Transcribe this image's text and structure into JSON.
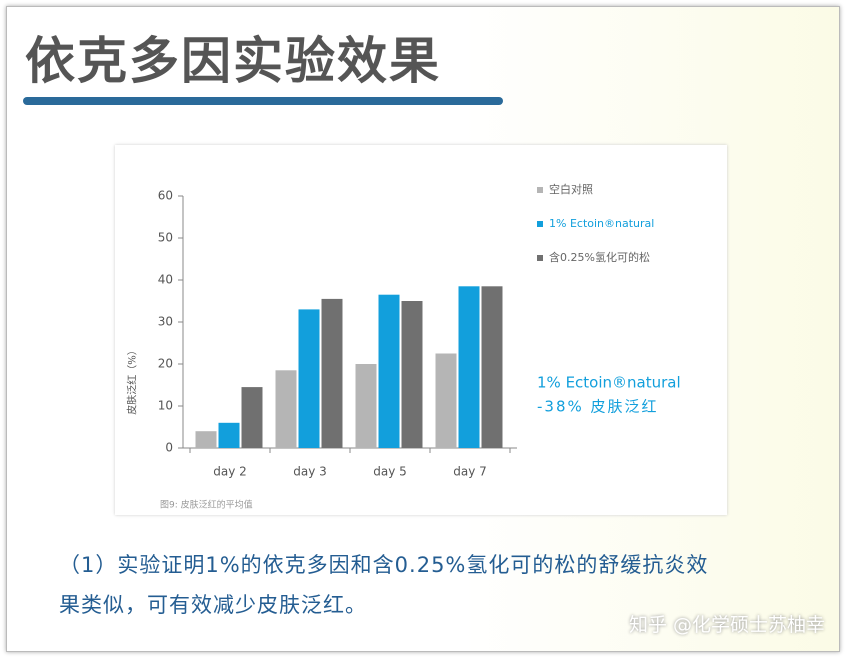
{
  "slide": {
    "title": "依克多因实验效果",
    "caption_lines": [
      "（1）实验证明1%的依克多因和含0.25%氢化可的松的舒缓抗炎效",
      "果类似，可有效减少皮肤泛红。"
    ],
    "watermark": "知乎 @化学硕士苏柚幸"
  },
  "chart_data": {
    "type": "bar",
    "y_label": "皮肤泛红（%）",
    "figure_caption": "图9: 皮肤泛红的平均值",
    "annotations": [
      "1% Ectoin®natural",
      "-38% 皮肤泛红"
    ],
    "categories": [
      "day 2",
      "day 3",
      "day 5",
      "day 7"
    ],
    "series": [
      {
        "name": "空白对照",
        "color": "#b5b5b5",
        "values": [
          4,
          18.5,
          20,
          22.5
        ]
      },
      {
        "name": "1% Ectoin®natural",
        "color": "#129fdc",
        "values": [
          6,
          33,
          36.5,
          38.5
        ]
      },
      {
        "name": "含0.25%氢化可的松",
        "color": "#707070",
        "values": [
          14.5,
          35.5,
          35,
          38.5
        ]
      }
    ],
    "ylim": [
      0,
      60
    ],
    "yticks": [
      0,
      10,
      20,
      30,
      40,
      50,
      60
    ]
  }
}
